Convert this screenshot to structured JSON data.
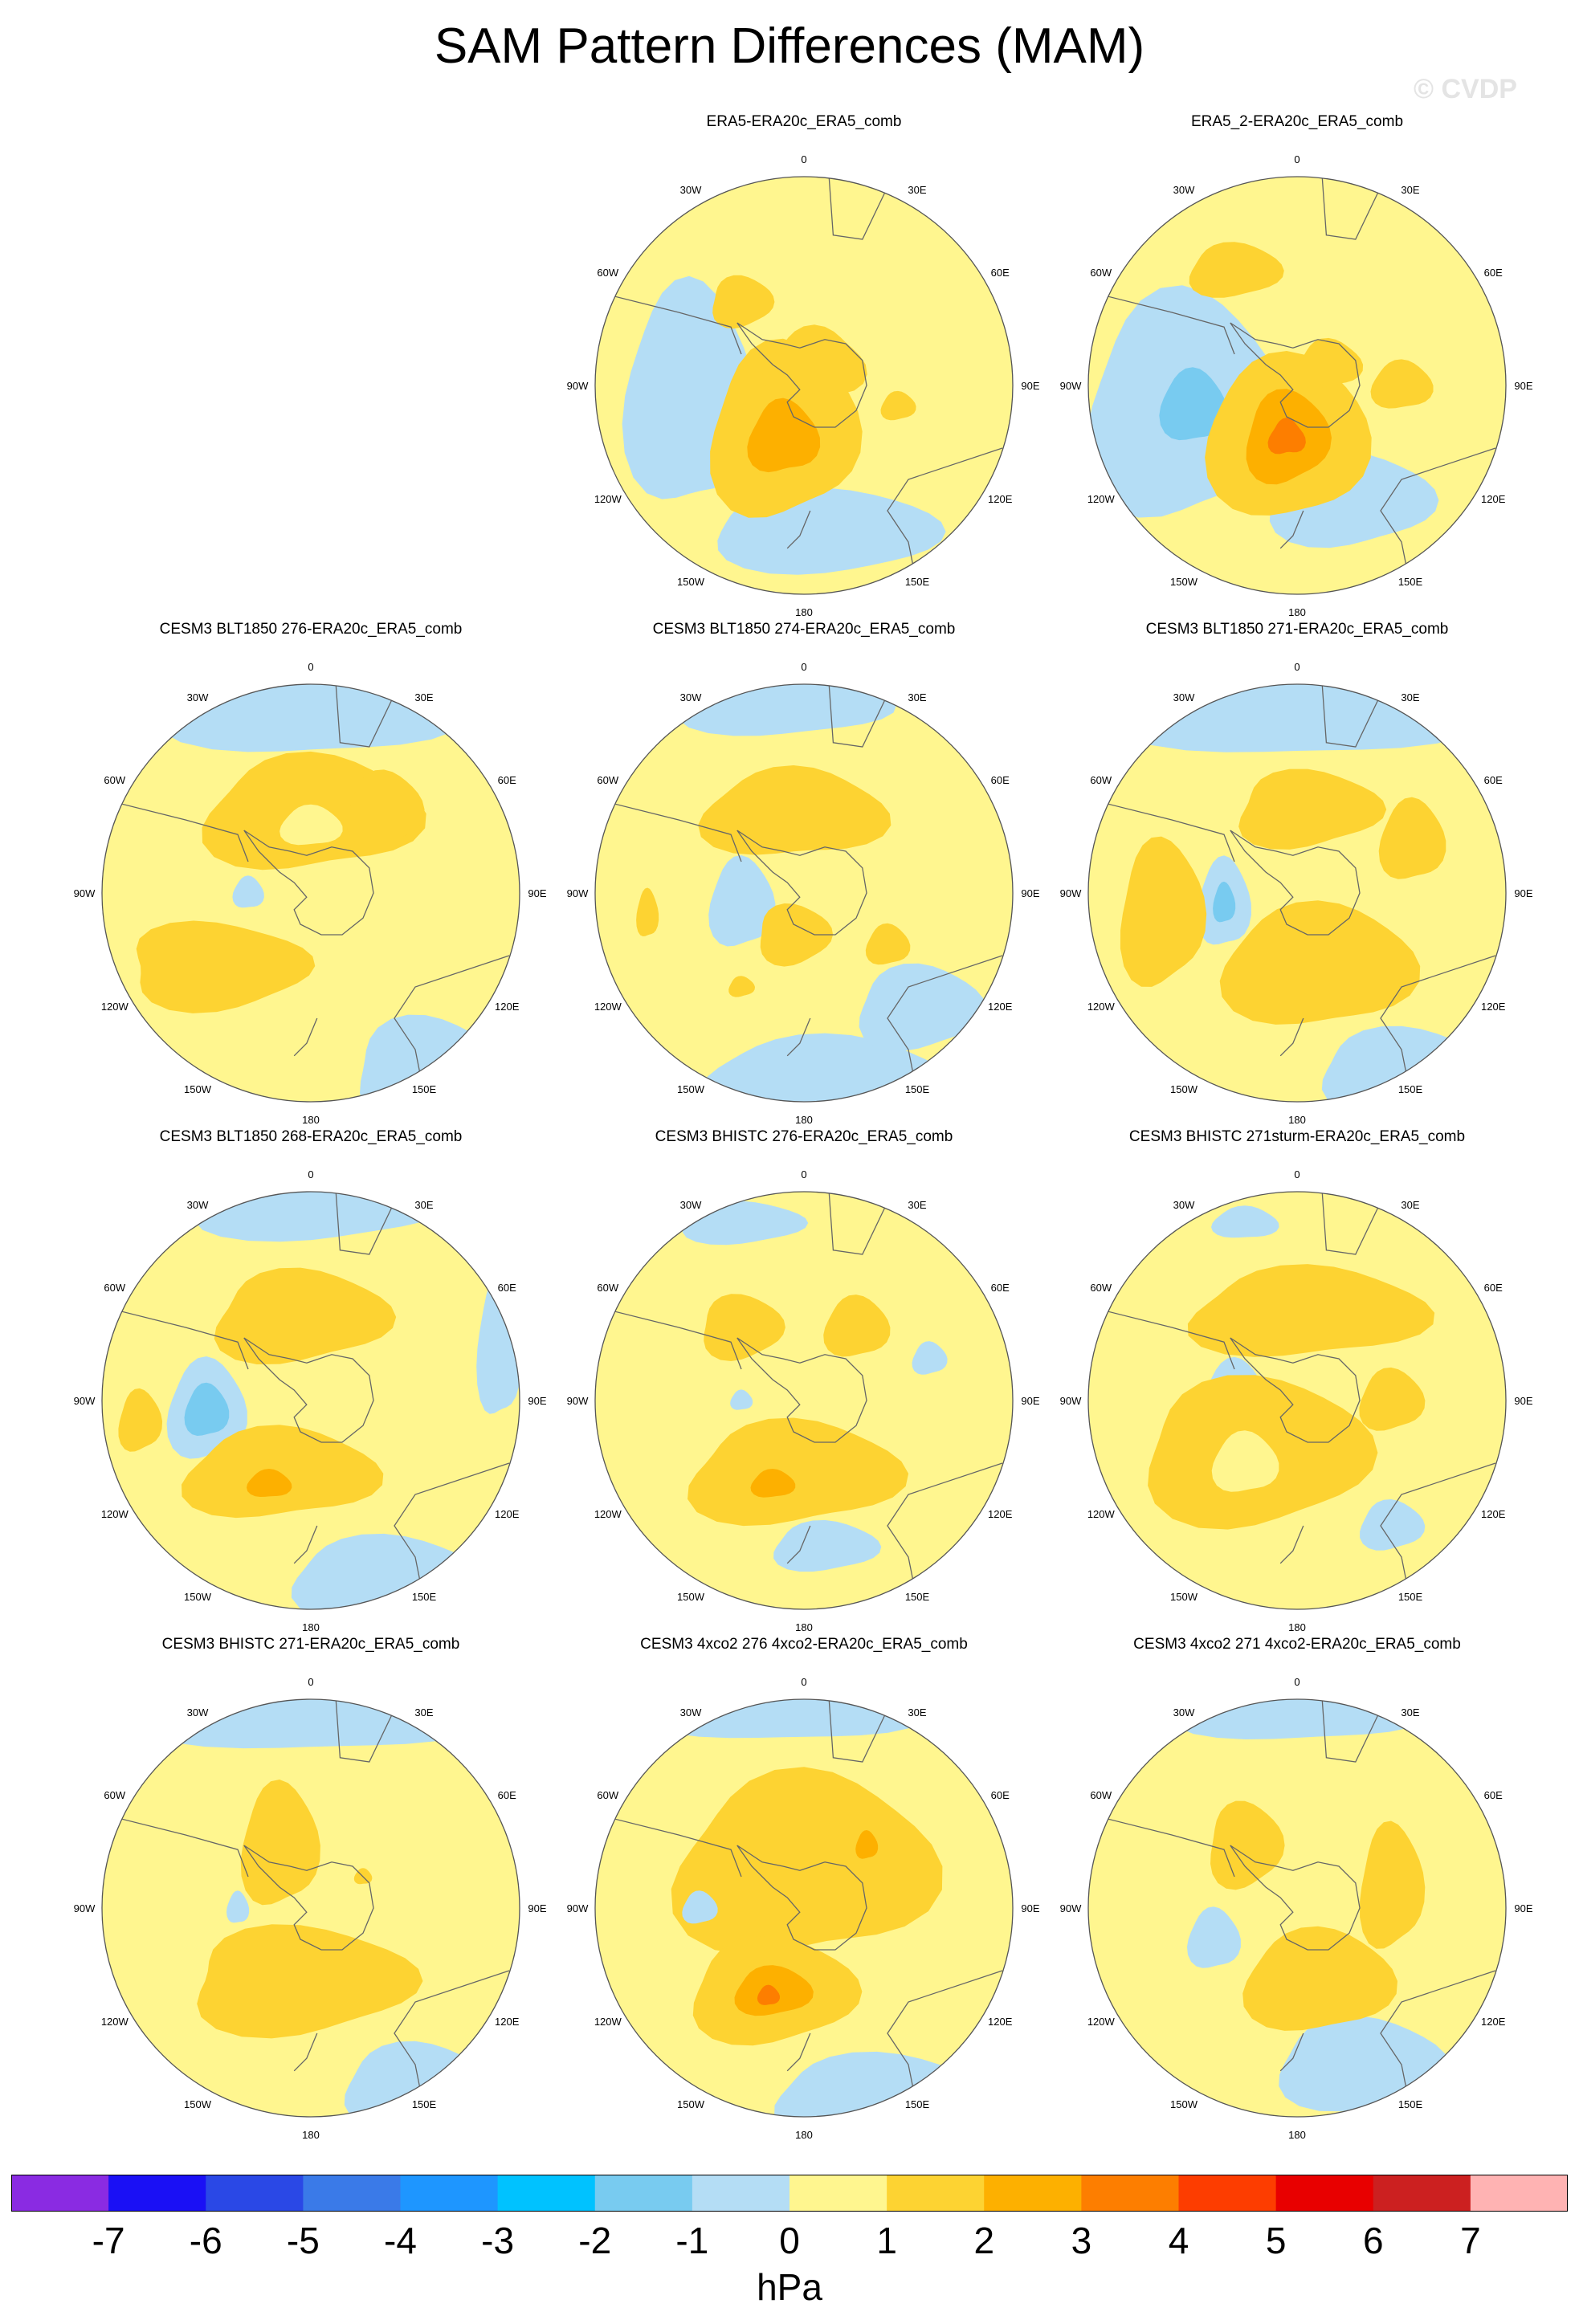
{
  "title": "SAM Pattern Differences (MAM)",
  "watermark": "© CVDP",
  "graticule": {
    "top": "0",
    "right": "90E",
    "bottom": "180",
    "left": "90W",
    "upper_left_1": "30W",
    "upper_right_1": "30E",
    "upper_left_2": "60W",
    "upper_right_2": "60E",
    "lower_left_1": "120W",
    "lower_right_1": "120E",
    "lower_left_2": "150W",
    "lower_right_2": "150E"
  },
  "panels": [
    {
      "title": "ERA5-ERA20c_ERA5_comb",
      "row": 0,
      "col": 1
    },
    {
      "title": "ERA5_2-ERA20c_ERA5_comb",
      "row": 0,
      "col": 2
    },
    {
      "title": "CESM3 BLT1850 276-ERA20c_ERA5_comb",
      "row": 1,
      "col": 0
    },
    {
      "title": "CESM3 BLT1850 274-ERA20c_ERA5_comb",
      "row": 1,
      "col": 1
    },
    {
      "title": "CESM3 BLT1850 271-ERA20c_ERA5_comb",
      "row": 1,
      "col": 2
    },
    {
      "title": "CESM3 BLT1850 268-ERA20c_ERA5_comb",
      "row": 2,
      "col": 0
    },
    {
      "title": "CESM3 BHISTC 276-ERA20c_ERA5_comb",
      "row": 2,
      "col": 1
    },
    {
      "title": "CESM3 BHISTC 271sturm-ERA20c_ERA5_comb",
      "row": 2,
      "col": 2
    },
    {
      "title": "CESM3 BHISTC 271-ERA20c_ERA5_comb",
      "row": 3,
      "col": 0
    },
    {
      "title": "CESM3 4xco2 276 4xco2-ERA20c_ERA5_comb",
      "row": 3,
      "col": 1
    },
    {
      "title": "CESM3 4xco2 271 4xco2-ERA20c_ERA5_comb",
      "row": 3,
      "col": 2
    }
  ],
  "colorbar": {
    "units": "hPa",
    "tick_labels": [
      "-7",
      "-6",
      "-5",
      "-4",
      "-3",
      "-2",
      "-1",
      "0",
      "1",
      "2",
      "3",
      "4",
      "5",
      "6",
      "7"
    ],
    "colors": [
      "#8a2be2",
      "#1a10f5",
      "#2a48e6",
      "#3a7ae8",
      "#1e96ff",
      "#00c2ff",
      "#78cbf0",
      "#b4ddf5",
      "#fff68f",
      "#fdd332",
      "#fdb000",
      "#fd7e00",
      "#fd3d00",
      "#e80000",
      "#cc2020",
      "#ffb3b3"
    ]
  }
}
